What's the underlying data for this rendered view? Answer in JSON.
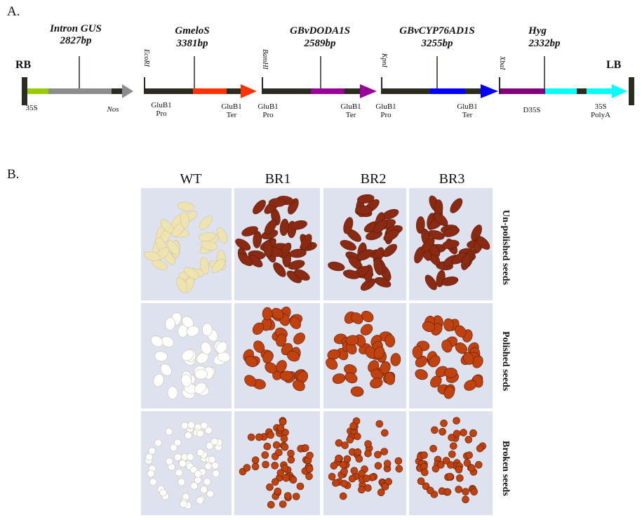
{
  "panel_a": {
    "label": "A.",
    "rb": "RB",
    "lb": "LB",
    "genes": [
      {
        "name": "Intron GUS",
        "size": "2827bp",
        "color": "#8c8c8c"
      },
      {
        "name": "GmeloS",
        "size": "3381bp",
        "color": "#ff3300"
      },
      {
        "name": "GBvDODA1S",
        "size": "2589bp",
        "color": "#990099"
      },
      {
        "name": "GBvCYP76AD1S",
        "size": "3255bp",
        "color": "#0000ff"
      },
      {
        "name": "Hyg",
        "size": "2332bp",
        "color": "#00ffff"
      }
    ],
    "sites": [
      "EcoRI",
      "BamHI",
      "KpnI",
      "XbaI"
    ],
    "elements": {
      "p35s": "35S",
      "nos": "Nos",
      "glub1pro": "GluB1\nPro",
      "glub1ter": "GluB1\nTer",
      "d35s": "D35S",
      "polya": "35S\nPolyA"
    },
    "colors": {
      "backbone": "#2b2b1f",
      "green": "#99cc00",
      "gray_arrow": "#8c8c8c",
      "red": "#ff3300",
      "purple_arrow": "#990099",
      "blue": "#0000ff",
      "hyg_purple": "#800080",
      "cyan": "#00ffff"
    }
  },
  "panel_b": {
    "label": "B.",
    "columns": [
      "WT",
      "BR1",
      "BR2",
      "BR3"
    ],
    "rows": [
      "Un-polished seeds",
      "Polished seeds",
      "Broken seeds"
    ],
    "colors": {
      "wt_unpolished": "#efe3b0",
      "wt_polished": "#ffffff",
      "br_unpolished": "#8a2a12",
      "br_polished": "#c0420e",
      "background": "#dde2ee"
    }
  }
}
